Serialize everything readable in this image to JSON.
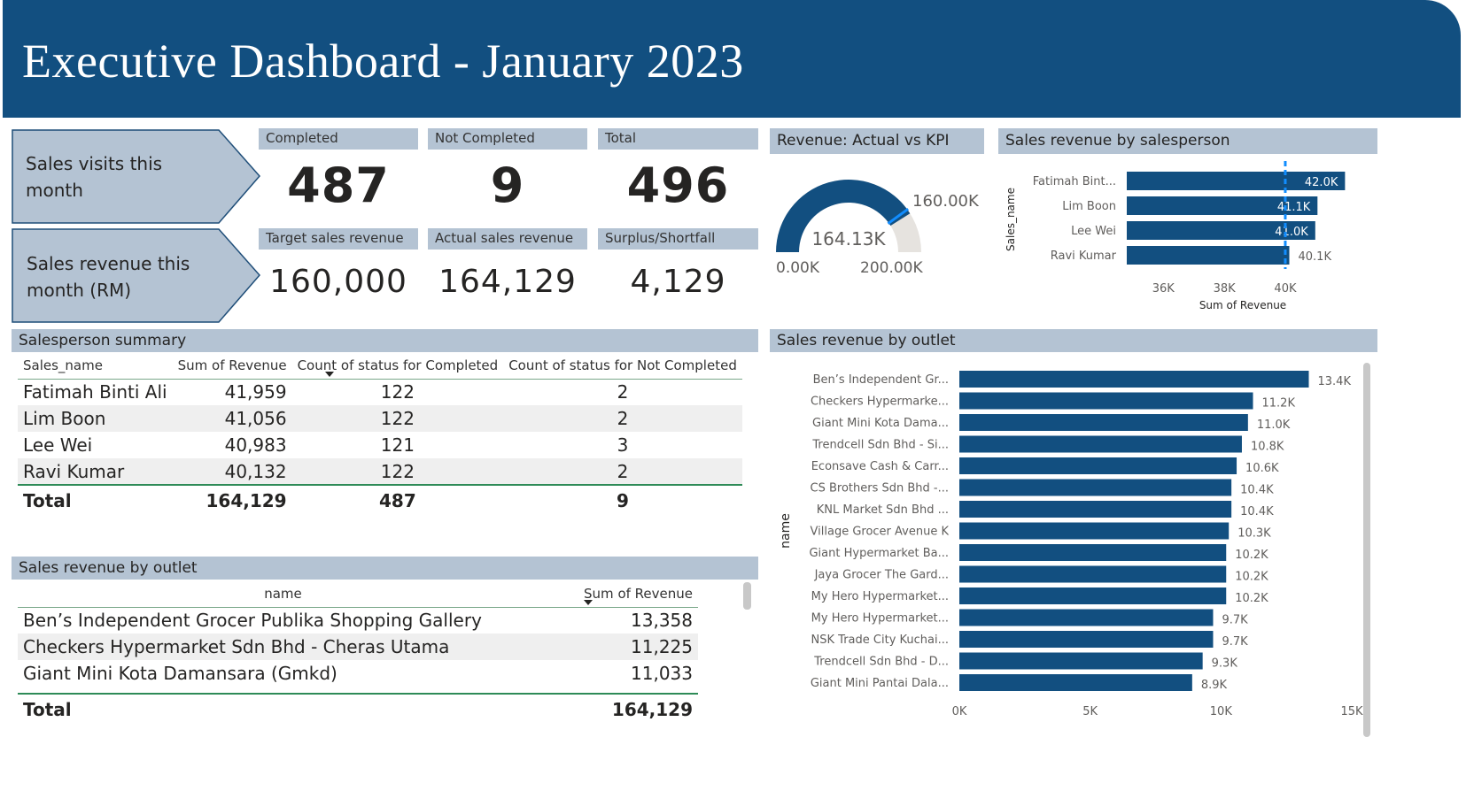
{
  "header": {
    "title": "Executive Dashboard - January 2023"
  },
  "visits": {
    "label": "Sales visits this month",
    "completed_label": "Completed",
    "completed": "487",
    "not_completed_label": "Not Completed",
    "not_completed": "9",
    "total_label": "Total",
    "total": "496"
  },
  "revenue": {
    "label": "Sales revenue this month (RM)",
    "target_label": "Target sales revenue",
    "target": "160,000",
    "actual_label": "Actual sales revenue",
    "actual": "164,129",
    "surplus_label": "Surplus/Shortfall",
    "surplus": "4,129"
  },
  "gauge": {
    "title": "Revenue: Actual vs KPI",
    "value_label": "164.13K",
    "target_label": "160.00K",
    "min_label": "0.00K",
    "max_label": "200.00K",
    "min": 0,
    "max": 200000,
    "value": 164129,
    "target": 160000,
    "colors": {
      "fill": "#124f80",
      "track": "#e6e3df",
      "target": "#118dff"
    }
  },
  "salesperson_table": {
    "title": "Salesperson summary",
    "columns": [
      "Sales_name",
      "Sum of Revenue",
      "Count of status for Completed",
      "Count of status for Not Completed"
    ],
    "rows": [
      [
        "Fatimah Binti Ali",
        "41,959",
        "122",
        "2"
      ],
      [
        "Lim Boon",
        "41,056",
        "122",
        "2"
      ],
      [
        "Lee Wei",
        "40,983",
        "121",
        "3"
      ],
      [
        "Ravi Kumar",
        "40,132",
        "122",
        "2"
      ]
    ],
    "total": [
      "Total",
      "164,129",
      "487",
      "9"
    ]
  },
  "outlet_table": {
    "title": "Sales revenue by outlet",
    "columns": [
      "name",
      "Sum of Revenue"
    ],
    "rows": [
      [
        "Ben’s Independent Grocer Publika Shopping Gallery",
        "13,358"
      ],
      [
        "Checkers Hypermarket Sdn Bhd - Cheras Utama",
        "11,225"
      ],
      [
        "Giant Mini Kota Damansara (Gmkd)",
        "11,033"
      ]
    ],
    "total": [
      "Total",
      "164,129"
    ]
  },
  "chart_data": [
    {
      "type": "bar",
      "orientation": "horizontal",
      "title": "Sales revenue by salesperson",
      "xlabel": "Sum of Revenue",
      "ylabel": "Sales_name",
      "categories": [
        "Fatimah Bint...",
        "Lim Boon",
        "Lee Wei",
        "Ravi Kumar"
      ],
      "values": [
        41959,
        41056,
        40983,
        40132
      ],
      "data_labels": [
        "42.0K",
        "41.1K",
        "41.0K",
        "40.1K"
      ],
      "xlim": [
        34800,
        42500
      ],
      "x_ticks": [
        {
          "v": 36000,
          "label": "36K"
        },
        {
          "v": 38000,
          "label": "38K"
        },
        {
          "v": 40000,
          "label": "40K"
        }
      ],
      "reference_line": 40000,
      "bar_color": "#124f80",
      "reference_color": "#118dff"
    },
    {
      "type": "bar",
      "orientation": "horizontal",
      "title": "Sales revenue by outlet",
      "xlabel": "",
      "ylabel": "name",
      "categories": [
        "Ben’s Independent Gr...",
        "Checkers Hypermarke...",
        "Giant Mini Kota Dama...",
        "Trendcell Sdn Bhd - Si...",
        "Econsave Cash & Carr...",
        "CS Brothers Sdn Bhd -...",
        "KNL Market Sdn Bhd ...",
        "Village Grocer Avenue K",
        "Giant Hypermarket Ba...",
        "Jaya Grocer The Gard...",
        "My Hero Hypermarket...",
        "My Hero Hypermarket...",
        "NSK Trade City Kuchai...",
        "Trendcell Sdn Bhd - D...",
        "Giant Mini Pantai Dala..."
      ],
      "values": [
        13358,
        11225,
        11033,
        10800,
        10600,
        10400,
        10400,
        10300,
        10200,
        10200,
        10200,
        9700,
        9700,
        9300,
        8900
      ],
      "data_labels": [
        "13.4K",
        "11.2K",
        "11.0K",
        "10.8K",
        "10.6K",
        "10.4K",
        "10.4K",
        "10.3K",
        "10.2K",
        "10.2K",
        "10.2K",
        "9.7K",
        "9.7K",
        "9.3K",
        "8.9K"
      ],
      "xlim": [
        0,
        15000
      ],
      "x_ticks": [
        {
          "v": 0,
          "label": "0K"
        },
        {
          "v": 5000,
          "label": "5K"
        },
        {
          "v": 10000,
          "label": "10K"
        },
        {
          "v": 15000,
          "label": "15K"
        }
      ],
      "bar_color": "#124f80"
    }
  ]
}
